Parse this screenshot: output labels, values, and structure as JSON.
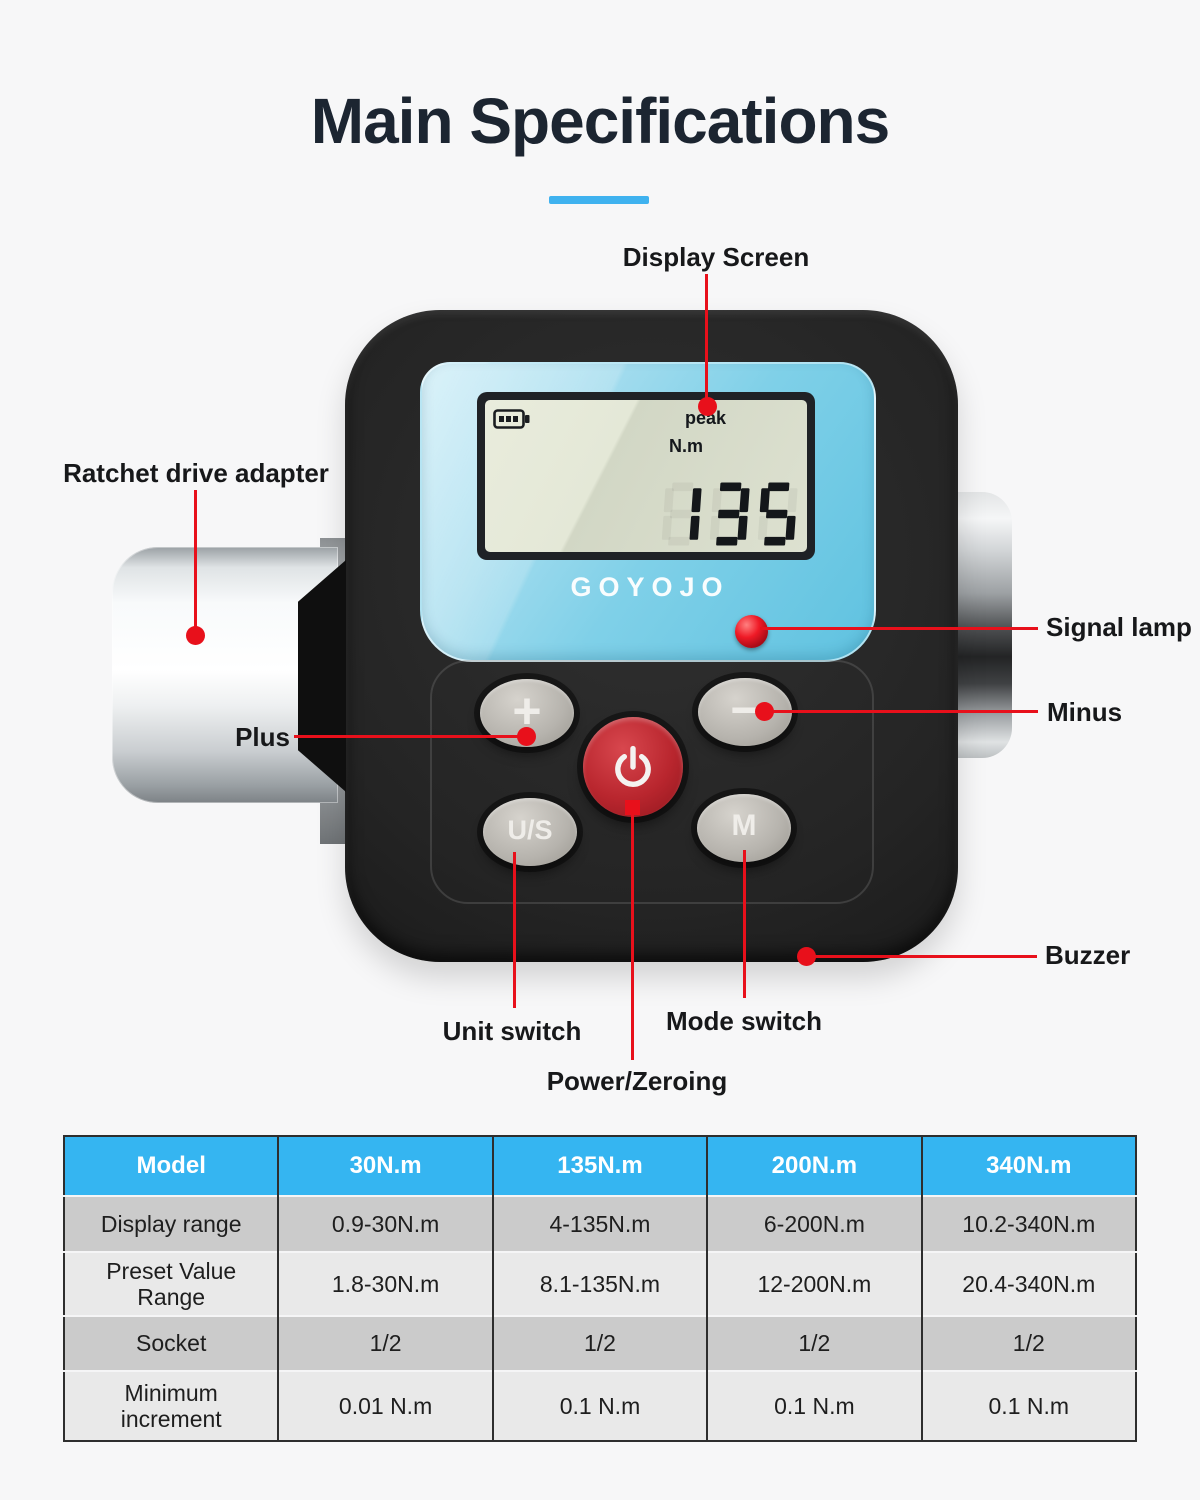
{
  "title": "Main Specifications",
  "colors": {
    "accent": "#3fb2ef",
    "callout": "#e8101b",
    "table_header_bg": "#35b5f1",
    "row_dark": "#cbcbcb",
    "row_light": "#e9e9e9",
    "title_color": "#1c2531",
    "faceplate_blue": "#7fd0e8",
    "power_button_red": "#b9262e"
  },
  "device": {
    "brand": "GOYOJO",
    "lcd": {
      "mode_label": "peak",
      "unit_label": "N.m",
      "value": "135"
    },
    "buttons": {
      "plus": "+",
      "minus": "−",
      "unit_switch": "U/S",
      "mode_switch": "M"
    }
  },
  "callouts": {
    "display_screen": "Display Screen",
    "ratchet_drive_adapter": "Ratchet drive adapter",
    "signal_lamp": "Signal lamp",
    "minus": "Minus",
    "plus": "Plus",
    "buzzer": "Buzzer",
    "unit_switch": "Unit switch",
    "mode_switch": "Mode switch",
    "power_zeroing": "Power/Zeroing"
  },
  "table": {
    "header": [
      "Model",
      "30N.m",
      "135N.m",
      "200N.m",
      "340N.m"
    ],
    "rows": [
      {
        "label": "Display range",
        "values": [
          "0.9-30N.m",
          "4-135N.m",
          "6-200N.m",
          "10.2-340N.m"
        ]
      },
      {
        "label": "Preset Value Range",
        "values": [
          "1.8-30N.m",
          "8.1-135N.m",
          "12-200N.m",
          "20.4-340N.m"
        ]
      },
      {
        "label": "Socket",
        "values": [
          "1/2",
          "1/2",
          "1/2",
          "1/2"
        ]
      },
      {
        "label": "Minimum increment",
        "values": [
          "0.01 N.m",
          "0.1 N.m",
          "0.1 N.m",
          "0.1 N.m"
        ]
      }
    ]
  }
}
